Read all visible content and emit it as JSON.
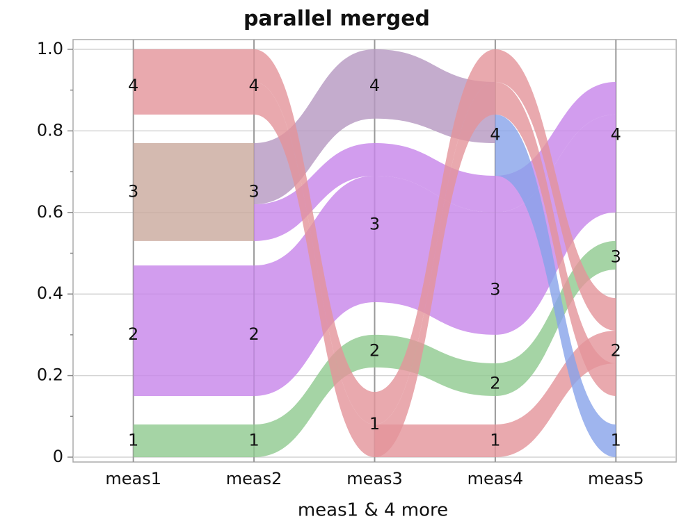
{
  "chart_data": {
    "type": "parallel_sets",
    "title": "parallel merged",
    "x_label": "meas1 & 4 more",
    "categories": [
      "meas1",
      "meas2",
      "meas3",
      "meas4",
      "meas5"
    ],
    "ylim": [
      0,
      1
    ],
    "yticks": [
      0,
      0.2,
      0.4,
      0.6,
      0.8,
      {
        "value": 1,
        "label": "1.0"
      }
    ],
    "grid": true,
    "category_labels": [
      [
        {
          "label": "1",
          "position": 0.04
        },
        {
          "label": "2",
          "position": 0.3
        },
        {
          "label": "3",
          "position": 0.65
        },
        {
          "label": "4",
          "position": 0.91
        }
      ],
      [
        {
          "label": "1",
          "position": 0.04
        },
        {
          "label": "2",
          "position": 0.3
        },
        {
          "label": "3",
          "position": 0.65
        },
        {
          "label": "4",
          "position": 0.91
        }
      ],
      [
        {
          "label": "1",
          "position": 0.08
        },
        {
          "label": "2",
          "position": 0.26
        },
        {
          "label": "3",
          "position": 0.57
        },
        {
          "label": "4",
          "position": 0.91
        }
      ],
      [
        {
          "label": "1",
          "position": 0.04
        },
        {
          "label": "2",
          "position": 0.18
        },
        {
          "label": "3",
          "position": 0.41
        },
        {
          "label": "4",
          "position": 0.79
        }
      ],
      [
        {
          "label": "1",
          "position": 0.04
        },
        {
          "label": "2",
          "position": 0.26
        },
        {
          "label": "3",
          "position": 0.49
        },
        {
          "label": "4",
          "position": 0.79
        }
      ]
    ],
    "ribbons": [
      {
        "color": "#c9a99c",
        "lo": [
          0.53,
          0.53,
          null,
          null,
          null
        ],
        "hi": [
          0.77,
          0.77,
          null,
          null,
          null
        ]
      },
      {
        "color": "#b597c0",
        "lo": [
          null,
          0.62,
          0.83,
          0.77,
          null
        ],
        "hi": [
          null,
          0.77,
          1.0,
          0.92,
          null
        ]
      },
      {
        "color": "#c784ea",
        "lo": [
          0.15,
          0.15,
          0.38,
          0.3,
          0.6
        ],
        "hi": [
          0.47,
          0.47,
          0.69,
          0.6,
          0.84
        ]
      },
      {
        "color": "#c784ea",
        "lo": [
          null,
          0.53,
          0.69,
          0.6,
          0.84
        ],
        "hi": [
          null,
          0.62,
          0.77,
          0.69,
          0.92
        ]
      },
      {
        "color": "#8fc98f",
        "lo": [
          0,
          0,
          0.22,
          0.15,
          0.46
        ],
        "hi": [
          0.08,
          0.08,
          0.3,
          0.23,
          0.53
        ]
      },
      {
        "color": "#e3949a",
        "lo": [
          0.92,
          0.92,
          0.08,
          0.92,
          0.31
        ],
        "hi": [
          1.0,
          1.0,
          0.16,
          1.0,
          0.39
        ]
      },
      {
        "color": "#e3949a",
        "lo": [
          0.84,
          0.84,
          0,
          0.84,
          0.15
        ],
        "hi": [
          0.92,
          0.92,
          0.08,
          0.92,
          0.23
        ]
      },
      {
        "color": "#e3949a",
        "lo": [
          null,
          null,
          0,
          0,
          0.23
        ],
        "hi": [
          null,
          null,
          0.08,
          0.08,
          0.31
        ]
      },
      {
        "color": "#87a3ea",
        "lo": [
          null,
          null,
          null,
          0.69,
          0
        ],
        "hi": [
          null,
          null,
          null,
          0.84,
          0.08
        ]
      }
    ]
  }
}
